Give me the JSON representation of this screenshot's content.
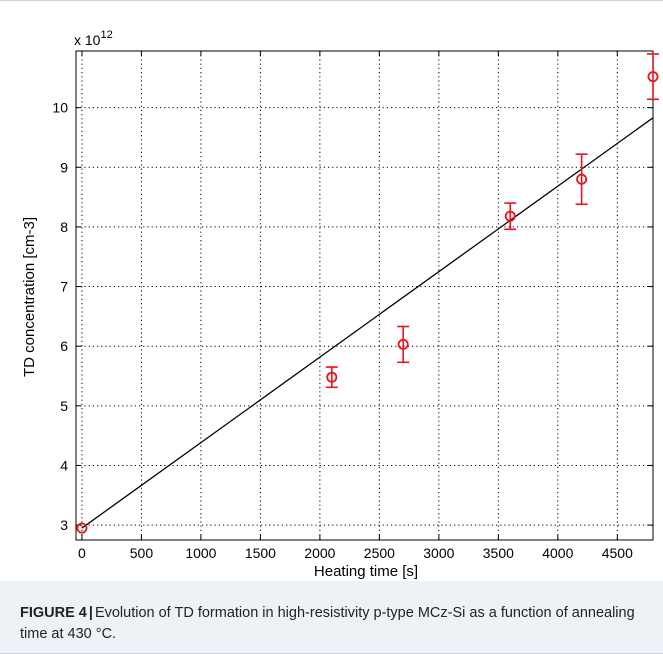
{
  "chart_data": {
    "type": "scatter",
    "xlabel": "Heating time [s]",
    "ylabel": "TD concentration [cm-3]",
    "y_multiplier_base": "x 10",
    "y_multiplier_exponent": "12",
    "xlim": [
      -50,
      4800
    ],
    "ylim": [
      2.75,
      10.95
    ],
    "x_ticks": [
      0,
      500,
      1000,
      1500,
      2000,
      2500,
      3000,
      3500,
      4000,
      4500
    ],
    "y_ticks": [
      3,
      4,
      5,
      6,
      7,
      8,
      9,
      10
    ],
    "grid": true,
    "grid_style": "dotted",
    "series": [
      {
        "kind": "points-with-error-bars",
        "color": "#e8141e",
        "x": [
          0,
          2100,
          2700,
          3600,
          4200,
          4800
        ],
        "y": [
          2.95,
          5.48,
          6.03,
          8.18,
          8.8,
          10.52
        ],
        "yerr": [
          0.0,
          0.17,
          0.3,
          0.22,
          0.42,
          0.38
        ]
      },
      {
        "kind": "linear-fit",
        "color": "#000000",
        "x": [
          0,
          4800
        ],
        "y": [
          2.95,
          9.83
        ]
      }
    ]
  },
  "caption": {
    "label": "FIGURE 4",
    "separator": "|",
    "text": "Evolution of TD formation in high-resistivity p-type MCz-Si as a function of annealing time at 430 °C."
  }
}
